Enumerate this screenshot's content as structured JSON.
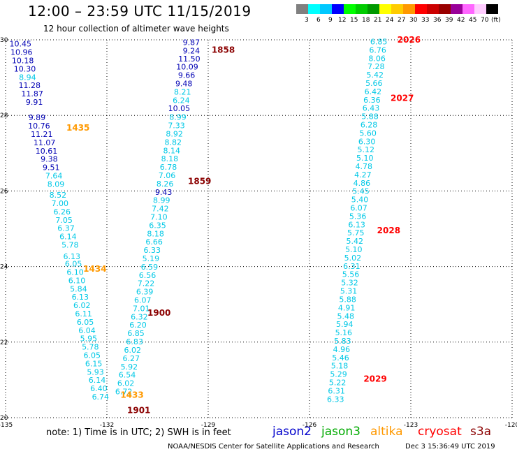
{
  "header": {
    "title": "12:00 – 23:59 UTC 11/15/2019",
    "subtitle": "12 hour collection of altimeter wave heights"
  },
  "color_scale": {
    "unit": "(ft)",
    "bins": [
      {
        "label": "3",
        "color": "#808080"
      },
      {
        "label": "6",
        "color": "#00ffff"
      },
      {
        "label": "9",
        "color": "#00c8ff"
      },
      {
        "label": "12",
        "color": "#0000ff"
      },
      {
        "label": "15",
        "color": "#00ff00"
      },
      {
        "label": "18",
        "color": "#00cc00"
      },
      {
        "label": "21",
        "color": "#009900"
      },
      {
        "label": "24",
        "color": "#ffff00"
      },
      {
        "label": "27",
        "color": "#ffcc00"
      },
      {
        "label": "30",
        "color": "#ff9900"
      },
      {
        "label": "33",
        "color": "#ff0000"
      },
      {
        "label": "36",
        "color": "#cc0000"
      },
      {
        "label": "39",
        "color": "#990000"
      },
      {
        "label": "42",
        "color": "#990099"
      },
      {
        "label": "45",
        "color": "#ff66ff"
      },
      {
        "label": "70",
        "color": "#ffccff"
      },
      {
        "label": "",
        "color": "#000000"
      }
    ]
  },
  "map": {
    "lon_ticks": [
      "-135",
      "-132",
      "-129",
      "-126",
      "-123",
      "-120"
    ],
    "lat_ticks": [
      "20",
      "22",
      "24",
      "26",
      "28",
      "30"
    ],
    "grid": "dotted"
  },
  "colors": {
    "cyan": "#00c8e6",
    "blue": "#0000b4",
    "darkred": "#8b0000",
    "orange": "#ff9900",
    "red": "#ff0000"
  },
  "time_labels": [
    {
      "text": "1858",
      "lon": -128.9,
      "lat": 29.66,
      "color": "#8b0000"
    },
    {
      "text": "1859",
      "lon": -129.6,
      "lat": 26.18,
      "color": "#8b0000"
    },
    {
      "text": "1900",
      "lon": -130.8,
      "lat": 22.7,
      "color": "#8b0000"
    },
    {
      "text": "1901",
      "lon": -131.4,
      "lat": 20.12,
      "color": "#8b0000"
    },
    {
      "text": "1435",
      "lon": -133.2,
      "lat": 27.6,
      "color": "#ff9900"
    },
    {
      "text": "1434",
      "lon": -132.7,
      "lat": 23.86,
      "color": "#ff9900"
    },
    {
      "text": "1433",
      "lon": -131.6,
      "lat": 20.53,
      "color": "#ff9900"
    },
    {
      "text": "2026",
      "lon": -123.4,
      "lat": 29.93,
      "color": "#ff0000"
    },
    {
      "text": "2027",
      "lon": -123.6,
      "lat": 28.38,
      "color": "#ff0000"
    },
    {
      "text": "2028",
      "lon": -124.0,
      "lat": 24.88,
      "color": "#ff0000"
    },
    {
      "text": "2029",
      "lon": -124.4,
      "lat": 20.95,
      "color": "#ff0000"
    }
  ],
  "tracks": [
    {
      "name": "track_a",
      "points": [
        {
          "lon": -134.56,
          "lat": 29.82,
          "value": "10.45",
          "color": "#0000b4"
        },
        {
          "lon": -134.53,
          "lat": 29.6,
          "value": "10.96",
          "color": "#0000b4"
        },
        {
          "lon": -134.49,
          "lat": 29.38,
          "value": "10.18",
          "color": "#0000b4"
        },
        {
          "lon": -134.43,
          "lat": 29.16,
          "value": "10.30",
          "color": "#0000b4"
        },
        {
          "lon": -134.35,
          "lat": 28.94,
          "value": "8.94",
          "color": "#00c8e6"
        },
        {
          "lon": -134.29,
          "lat": 28.72,
          "value": "11.28",
          "color": "#0000b4"
        },
        {
          "lon": -134.21,
          "lat": 28.5,
          "value": "11.87",
          "color": "#0000b4"
        },
        {
          "lon": -134.15,
          "lat": 28.28,
          "value": "9.91",
          "color": "#0000b4"
        },
        {
          "lon": -134.07,
          "lat": 27.87,
          "value": "9.89",
          "color": "#0000b4"
        },
        {
          "lon": -134.01,
          "lat": 27.65,
          "value": "10.76",
          "color": "#0000b4"
        },
        {
          "lon": -133.93,
          "lat": 27.43,
          "value": "11.21",
          "color": "#0000b4"
        },
        {
          "lon": -133.85,
          "lat": 27.21,
          "value": "11.07",
          "color": "#0000b4"
        },
        {
          "lon": -133.79,
          "lat": 26.99,
          "value": "10.61",
          "color": "#0000b4"
        },
        {
          "lon": -133.71,
          "lat": 26.77,
          "value": "9.38",
          "color": "#0000b4"
        },
        {
          "lon": -133.65,
          "lat": 26.55,
          "value": "9.51",
          "color": "#0000b4"
        },
        {
          "lon": -133.57,
          "lat": 26.33,
          "value": "7.64",
          "color": "#00c8e6"
        },
        {
          "lon": -133.51,
          "lat": 26.11,
          "value": "8.09",
          "color": "#00c8e6"
        },
        {
          "lon": -133.45,
          "lat": 25.82,
          "value": "8.52",
          "color": "#00c8e6"
        },
        {
          "lon": -133.39,
          "lat": 25.6,
          "value": "7.00",
          "color": "#00c8e6"
        },
        {
          "lon": -133.33,
          "lat": 25.38,
          "value": "6.26",
          "color": "#00c8e6"
        },
        {
          "lon": -133.27,
          "lat": 25.16,
          "value": "7.05",
          "color": "#00c8e6"
        },
        {
          "lon": -133.21,
          "lat": 24.94,
          "value": "6.37",
          "color": "#00c8e6"
        },
        {
          "lon": -133.15,
          "lat": 24.72,
          "value": "6.14",
          "color": "#00c8e6"
        },
        {
          "lon": -133.09,
          "lat": 24.5,
          "value": "5.78",
          "color": "#00c8e6"
        },
        {
          "lon": -133.04,
          "lat": 24.2,
          "value": "6.13",
          "color": "#00c8e6"
        },
        {
          "lon": -132.99,
          "lat": 24.0,
          "value": "6.05",
          "color": "#00c8e6"
        },
        {
          "lon": -132.94,
          "lat": 23.78,
          "value": "6.10",
          "color": "#00c8e6"
        },
        {
          "lon": -132.89,
          "lat": 23.56,
          "value": "6.10",
          "color": "#00c8e6"
        },
        {
          "lon": -132.84,
          "lat": 23.34,
          "value": "5.84",
          "color": "#00c8e6"
        },
        {
          "lon": -132.79,
          "lat": 23.12,
          "value": "6.13",
          "color": "#00c8e6"
        },
        {
          "lon": -132.74,
          "lat": 22.9,
          "value": "6.02",
          "color": "#00c8e6"
        },
        {
          "lon": -132.69,
          "lat": 22.68,
          "value": "6.11",
          "color": "#00c8e6"
        },
        {
          "lon": -132.64,
          "lat": 22.46,
          "value": "6.05",
          "color": "#00c8e6"
        },
        {
          "lon": -132.59,
          "lat": 22.24,
          "value": "6.04",
          "color": "#00c8e6"
        },
        {
          "lon": -132.54,
          "lat": 22.02,
          "value": "5.95",
          "color": "#00c8e6"
        },
        {
          "lon": -132.49,
          "lat": 21.8,
          "value": "5.78",
          "color": "#00c8e6"
        },
        {
          "lon": -132.44,
          "lat": 21.58,
          "value": "6.05",
          "color": "#00c8e6"
        },
        {
          "lon": -132.39,
          "lat": 21.36,
          "value": "6.15",
          "color": "#00c8e6"
        },
        {
          "lon": -132.34,
          "lat": 21.14,
          "value": "5.93",
          "color": "#00c8e6"
        },
        {
          "lon": -132.29,
          "lat": 20.92,
          "value": "6.14",
          "color": "#00c8e6"
        },
        {
          "lon": -132.24,
          "lat": 20.7,
          "value": "6.40",
          "color": "#00c8e6"
        },
        {
          "lon": -132.19,
          "lat": 20.48,
          "value": "6.74",
          "color": "#00c8e6"
        }
      ]
    },
    {
      "name": "track_b",
      "points": [
        {
          "lon": -129.5,
          "lat": 29.86,
          "value": "9.87",
          "color": "#0000b4"
        },
        {
          "lon": -129.5,
          "lat": 29.64,
          "value": "9.24",
          "color": "#0000b4"
        },
        {
          "lon": -129.56,
          "lat": 29.43,
          "value": "11.50",
          "color": "#0000b4"
        },
        {
          "lon": -129.62,
          "lat": 29.21,
          "value": "10.09",
          "color": "#0000b4"
        },
        {
          "lon": -129.64,
          "lat": 28.99,
          "value": "9.66",
          "color": "#0000b4"
        },
        {
          "lon": -129.72,
          "lat": 28.77,
          "value": "9.48",
          "color": "#0000b4"
        },
        {
          "lon": -129.76,
          "lat": 28.55,
          "value": "8.21",
          "color": "#00c8e6"
        },
        {
          "lon": -129.8,
          "lat": 28.33,
          "value": "6.24",
          "color": "#00c8e6"
        },
        {
          "lon": -129.86,
          "lat": 28.11,
          "value": "10.05",
          "color": "#0000b4"
        },
        {
          "lon": -129.9,
          "lat": 27.88,
          "value": "8.99",
          "color": "#00c8e6"
        },
        {
          "lon": -129.94,
          "lat": 27.66,
          "value": "7.33",
          "color": "#00c8e6"
        },
        {
          "lon": -130.0,
          "lat": 27.44,
          "value": "8.92",
          "color": "#00c8e6"
        },
        {
          "lon": -130.04,
          "lat": 27.22,
          "value": "8.82",
          "color": "#00c8e6"
        },
        {
          "lon": -130.08,
          "lat": 27.0,
          "value": "8.14",
          "color": "#00c8e6"
        },
        {
          "lon": -130.14,
          "lat": 26.78,
          "value": "8.18",
          "color": "#00c8e6"
        },
        {
          "lon": -130.18,
          "lat": 26.56,
          "value": "6.78",
          "color": "#00c8e6"
        },
        {
          "lon": -130.22,
          "lat": 26.34,
          "value": "7.06",
          "color": "#00c8e6"
        },
        {
          "lon": -130.28,
          "lat": 26.12,
          "value": "8.26",
          "color": "#00c8e6"
        },
        {
          "lon": -130.32,
          "lat": 25.9,
          "value": "9.43",
          "color": "#0000b4"
        },
        {
          "lon": -130.38,
          "lat": 25.68,
          "value": "8.99",
          "color": "#00c8e6"
        },
        {
          "lon": -130.42,
          "lat": 25.46,
          "value": "7.42",
          "color": "#00c8e6"
        },
        {
          "lon": -130.46,
          "lat": 25.24,
          "value": "7.10",
          "color": "#00c8e6"
        },
        {
          "lon": -130.5,
          "lat": 25.02,
          "value": "6.35",
          "color": "#00c8e6"
        },
        {
          "lon": -130.56,
          "lat": 24.8,
          "value": "8.18",
          "color": "#00c8e6"
        },
        {
          "lon": -130.6,
          "lat": 24.58,
          "value": "6.66",
          "color": "#00c8e6"
        },
        {
          "lon": -130.66,
          "lat": 24.36,
          "value": "6.33",
          "color": "#00c8e6"
        },
        {
          "lon": -130.7,
          "lat": 24.14,
          "value": "5.19",
          "color": "#00c8e6"
        },
        {
          "lon": -130.74,
          "lat": 23.92,
          "value": "6.59",
          "color": "#00c8e6"
        },
        {
          "lon": -130.8,
          "lat": 23.7,
          "value": "6.56",
          "color": "#00c8e6"
        },
        {
          "lon": -130.84,
          "lat": 23.48,
          "value": "7.22",
          "color": "#00c8e6"
        },
        {
          "lon": -130.88,
          "lat": 23.26,
          "value": "6.39",
          "color": "#00c8e6"
        },
        {
          "lon": -130.94,
          "lat": 23.04,
          "value": "6.07",
          "color": "#00c8e6"
        },
        {
          "lon": -130.98,
          "lat": 22.82,
          "value": "7.01",
          "color": "#00c8e6"
        },
        {
          "lon": -131.04,
          "lat": 22.6,
          "value": "6.32",
          "color": "#00c8e6"
        },
        {
          "lon": -131.08,
          "lat": 22.38,
          "value": "6.20",
          "color": "#00c8e6"
        },
        {
          "lon": -131.14,
          "lat": 22.16,
          "value": "6.85",
          "color": "#00c8e6"
        },
        {
          "lon": -131.18,
          "lat": 21.94,
          "value": "6.83",
          "color": "#00c8e6"
        },
        {
          "lon": -131.24,
          "lat": 21.72,
          "value": "6.02",
          "color": "#00c8e6"
        },
        {
          "lon": -131.28,
          "lat": 21.5,
          "value": "6.27",
          "color": "#00c8e6"
        },
        {
          "lon": -131.34,
          "lat": 21.28,
          "value": "5.92",
          "color": "#00c8e6"
        },
        {
          "lon": -131.4,
          "lat": 21.06,
          "value": "6.54",
          "color": "#00c8e6"
        },
        {
          "lon": -131.44,
          "lat": 20.84,
          "value": "6.02",
          "color": "#00c8e6"
        },
        {
          "lon": -131.5,
          "lat": 20.62,
          "value": "6.72",
          "color": "#00c8e6"
        }
      ]
    },
    {
      "name": "track_c",
      "points": [
        {
          "lon": -123.95,
          "lat": 29.88,
          "value": "6.85",
          "color": "#00c8e6"
        },
        {
          "lon": -123.98,
          "lat": 29.66,
          "value": "6.76",
          "color": "#00c8e6"
        },
        {
          "lon": -124.0,
          "lat": 29.44,
          "value": "8.06",
          "color": "#00c8e6"
        },
        {
          "lon": -124.03,
          "lat": 29.22,
          "value": "7.28",
          "color": "#00c8e6"
        },
        {
          "lon": -124.06,
          "lat": 29.0,
          "value": "5.42",
          "color": "#00c8e6"
        },
        {
          "lon": -124.09,
          "lat": 28.78,
          "value": "5.66",
          "color": "#00c8e6"
        },
        {
          "lon": -124.12,
          "lat": 28.56,
          "value": "6.42",
          "color": "#00c8e6"
        },
        {
          "lon": -124.15,
          "lat": 28.34,
          "value": "6.36",
          "color": "#00c8e6"
        },
        {
          "lon": -124.18,
          "lat": 28.12,
          "value": "6.43",
          "color": "#00c8e6"
        },
        {
          "lon": -124.21,
          "lat": 27.9,
          "value": "5.88",
          "color": "#00c8e6"
        },
        {
          "lon": -124.24,
          "lat": 27.68,
          "value": "6.28",
          "color": "#00c8e6"
        },
        {
          "lon": -124.27,
          "lat": 27.46,
          "value": "5.60",
          "color": "#00c8e6"
        },
        {
          "lon": -124.3,
          "lat": 27.24,
          "value": "6.30",
          "color": "#00c8e6"
        },
        {
          "lon": -124.33,
          "lat": 27.02,
          "value": "5.12",
          "color": "#00c8e6"
        },
        {
          "lon": -124.36,
          "lat": 26.8,
          "value": "5.10",
          "color": "#00c8e6"
        },
        {
          "lon": -124.39,
          "lat": 26.58,
          "value": "4.78",
          "color": "#00c8e6"
        },
        {
          "lon": -124.42,
          "lat": 26.36,
          "value": "4.27",
          "color": "#00c8e6"
        },
        {
          "lon": -124.45,
          "lat": 26.14,
          "value": "4.86",
          "color": "#00c8e6"
        },
        {
          "lon": -124.48,
          "lat": 25.92,
          "value": "5.45",
          "color": "#00c8e6"
        },
        {
          "lon": -124.51,
          "lat": 25.7,
          "value": "5.40",
          "color": "#00c8e6"
        },
        {
          "lon": -124.54,
          "lat": 25.48,
          "value": "6.07",
          "color": "#00c8e6"
        },
        {
          "lon": -124.57,
          "lat": 25.26,
          "value": "5.36",
          "color": "#00c8e6"
        },
        {
          "lon": -124.6,
          "lat": 25.04,
          "value": "6.13",
          "color": "#00c8e6"
        },
        {
          "lon": -124.63,
          "lat": 24.82,
          "value": "5.75",
          "color": "#00c8e6"
        },
        {
          "lon": -124.66,
          "lat": 24.6,
          "value": "5.42",
          "color": "#00c8e6"
        },
        {
          "lon": -124.69,
          "lat": 24.38,
          "value": "5.10",
          "color": "#00c8e6"
        },
        {
          "lon": -124.72,
          "lat": 24.16,
          "value": "5.02",
          "color": "#00c8e6"
        },
        {
          "lon": -124.75,
          "lat": 23.94,
          "value": "6.31",
          "color": "#00c8e6"
        },
        {
          "lon": -124.78,
          "lat": 23.72,
          "value": "5.56",
          "color": "#00c8e6"
        },
        {
          "lon": -124.81,
          "lat": 23.5,
          "value": "5.32",
          "color": "#00c8e6"
        },
        {
          "lon": -124.84,
          "lat": 23.28,
          "value": "5.31",
          "color": "#00c8e6"
        },
        {
          "lon": -124.87,
          "lat": 23.06,
          "value": "5.88",
          "color": "#00c8e6"
        },
        {
          "lon": -124.9,
          "lat": 22.84,
          "value": "4.91",
          "color": "#00c8e6"
        },
        {
          "lon": -124.93,
          "lat": 22.62,
          "value": "5.48",
          "color": "#00c8e6"
        },
        {
          "lon": -124.96,
          "lat": 22.4,
          "value": "5.94",
          "color": "#00c8e6"
        },
        {
          "lon": -124.99,
          "lat": 22.18,
          "value": "5.16",
          "color": "#00c8e6"
        },
        {
          "lon": -125.02,
          "lat": 21.96,
          "value": "5.83",
          "color": "#00c8e6"
        },
        {
          "lon": -125.05,
          "lat": 21.74,
          "value": "4.96",
          "color": "#00c8e6"
        },
        {
          "lon": -125.08,
          "lat": 21.52,
          "value": "5.46",
          "color": "#00c8e6"
        },
        {
          "lon": -125.11,
          "lat": 21.3,
          "value": "5.18",
          "color": "#00c8e6"
        },
        {
          "lon": -125.14,
          "lat": 21.08,
          "value": "5.29",
          "color": "#00c8e6"
        },
        {
          "lon": -125.17,
          "lat": 20.86,
          "value": "5.22",
          "color": "#00c8e6"
        },
        {
          "lon": -125.2,
          "lat": 20.64,
          "value": "6.31",
          "color": "#00c8e6"
        },
        {
          "lon": -125.23,
          "lat": 20.42,
          "value": "6.33",
          "color": "#00c8e6"
        }
      ]
    }
  ],
  "footer": {
    "note": "note:  1) Time is in UTC;  2) SWH is in feet",
    "legend": [
      {
        "label": "jason2",
        "color": "#0000cc"
      },
      {
        "label": "jason3",
        "color": "#00aa00"
      },
      {
        "label": "altika",
        "color": "#ff9900"
      },
      {
        "label": "cryosat",
        "color": "#ff0000"
      },
      {
        "label": "s3a",
        "color": "#8b0000"
      }
    ],
    "credit": "NOAA/NESDIS Center for Satellite Applications and Research",
    "generated": "Dec  3 15:36:49 UTC 2019"
  }
}
